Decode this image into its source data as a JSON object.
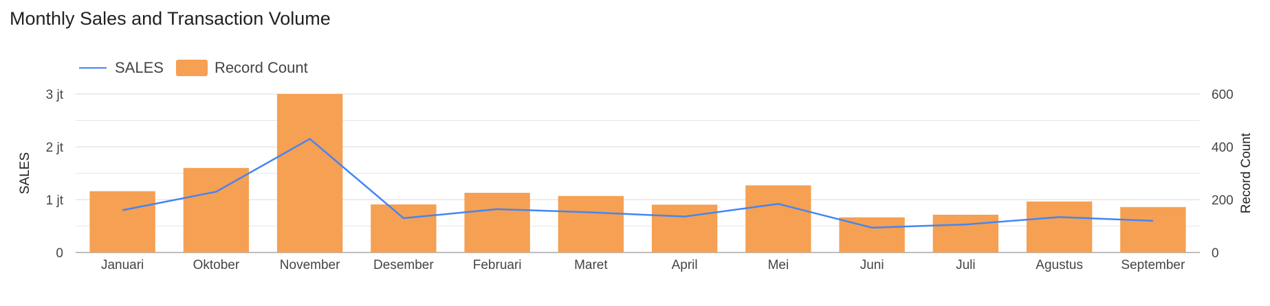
{
  "title": "Monthly Sales and Transaction Volume",
  "colors": {
    "line": "#4285f4",
    "bar": "#f5a053",
    "grid": "#d9d9d9",
    "minor_grid": "#e6e6e6",
    "baseline": "#bdbdbd"
  },
  "chart_data": {
    "type": "bar",
    "title": "Monthly Sales and Transaction Volume",
    "categories": [
      "Januari",
      "Oktober",
      "November",
      "Desember",
      "Februari",
      "Maret",
      "April",
      "Mei",
      "Juni",
      "Juli",
      "Agustus",
      "September"
    ],
    "series": [
      {
        "name": "SALES",
        "type": "line",
        "axis": "left",
        "values": [
          800000,
          1150000,
          2150000,
          650000,
          820000,
          760000,
          680000,
          920000,
          470000,
          530000,
          670000,
          600000
        ]
      },
      {
        "name": "Record Count",
        "type": "bar",
        "axis": "right",
        "values": [
          232,
          320,
          600,
          182,
          226,
          214,
          181,
          254,
          133,
          143,
          193,
          172
        ]
      }
    ],
    "left_axis": {
      "label": "SALES",
      "ticks": [
        "0",
        "1 jt",
        "2 jt",
        "3 jt"
      ],
      "tick_values": [
        0,
        1000000,
        2000000,
        3000000
      ],
      "range": [
        0,
        3000000
      ]
    },
    "right_axis": {
      "label": "Record Count",
      "ticks": [
        "0",
        "200",
        "400",
        "600"
      ],
      "tick_values": [
        0,
        200,
        400,
        600
      ],
      "range": [
        0,
        600
      ]
    },
    "legend": "top-left",
    "grid": true
  }
}
